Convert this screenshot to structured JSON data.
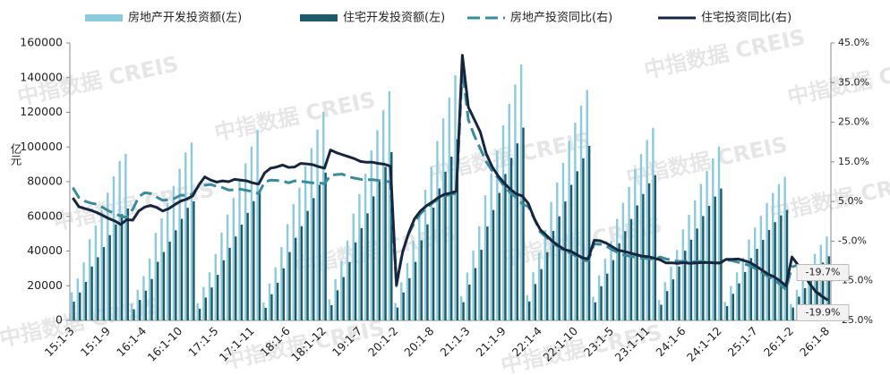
{
  "chart_data": {
    "type": "bar",
    "y_label": "亿元",
    "watermark": "中指数据 CREIS",
    "categories": [
      "15:1-3",
      null,
      null,
      null,
      null,
      null,
      "15:1-9",
      null,
      null,
      null,
      null,
      null,
      "16:1-4",
      null,
      null,
      null,
      null,
      null,
      "16:1-10",
      null,
      null,
      null,
      null,
      null,
      "17:1-5",
      null,
      null,
      null,
      null,
      null,
      "17:1-11",
      null,
      null,
      null,
      null,
      null,
      "18:1-6",
      null,
      null,
      null,
      null,
      null,
      "18:1-12",
      null,
      null,
      null,
      null,
      null,
      "19:1-7",
      null,
      null,
      null,
      null,
      null,
      "20:1-2",
      null,
      null,
      null,
      null,
      null,
      "20:1-8",
      null,
      null,
      null,
      null,
      null,
      "21:1-3",
      null,
      null,
      null,
      null,
      null,
      "21:1-9",
      null,
      null,
      null,
      null,
      null,
      "22:1-4",
      null,
      null,
      null,
      null,
      null,
      "22:1-10",
      null,
      null,
      null,
      null,
      null,
      "23:1-5",
      null,
      null,
      null,
      null,
      null,
      "23:1-11",
      null,
      null,
      null,
      null,
      null,
      "24:1-6",
      null,
      null,
      null,
      null,
      null,
      "24:1-12",
      null,
      null,
      null,
      null,
      null,
      "25:1-7",
      null,
      null,
      null,
      null,
      null,
      "26:1-2",
      null,
      null,
      null,
      null,
      null,
      "26:1-8"
    ],
    "series": [
      {
        "name": "房地产开发投资额(左)",
        "type": "bar",
        "color": "#8ccbdc",
        "values": [
          16214,
          24177,
          33448,
          46863,
          54747,
          63616,
          73693,
          83063,
          91946,
          95979,
          9454,
          17677,
          25574,
          35632,
          50464,
          58869,
          67778,
          77574,
          87441,
          96857,
          102581,
          9854,
          19292,
          27732,
          38311,
          50610,
          61111,
          70632,
          80644,
          90544,
          100387,
          109799,
          10255,
          21291,
          30592,
          42362,
          55531,
          67099,
          76519,
          88948,
          99325,
          110083,
          120264,
          12090,
          23803,
          34217,
          46075,
          61609,
          72843,
          84589,
          98008,
          109603,
          121265,
          132194,
          10115,
          21963,
          33103,
          45920,
          62780,
          75325,
          88454,
          103484,
          116556,
          128492,
          141443,
          13986,
          27576,
          40240,
          54318,
          72179,
          84895,
          98060,
          112568,
          124934,
          136085,
          147602,
          14499,
          27765,
          39154,
          52134,
          68314,
          79462,
          90809,
          103559,
          113945,
          123863,
          132895,
          13669,
          25974,
          35514,
          45701,
          58550,
          67717,
          76900,
          87269,
          95922,
          104045,
          110913,
          11842,
          22082,
          30928,
          40632,
          52529,
          60877,
          69284,
          78680,
          86309,
          93368,
          100280,
          10720,
          19904,
          27730,
          36234,
          46658,
          53580,
          60309,
          67706,
          73563,
          78591,
          82788,
          9490,
          17710,
          24100,
          30600,
          38400,
          43600,
          48430
        ]
      },
      {
        "name": "住宅开发投资额(左)",
        "type": "bar",
        "color": "#1f5a6b",
        "values": [
          10788,
          16093,
          22179,
          31074,
          36409,
          42279,
          49140,
          55379,
          61283,
          64595,
          6334,
          11844,
          17135,
          23873,
          33811,
          39442,
          45411,
          51975,
          58585,
          64894,
          68704,
          6750,
          13215,
          18996,
          26243,
          34668,
          41861,
          48383,
          55241,
          62023,
          68765,
          75148,
          7281,
          15117,
          21720,
          30077,
          39427,
          47640,
          54328,
          63153,
          70521,
          78159,
          85192,
          8826,
          17376,
          24978,
          33635,
          44975,
          53175,
          61750,
          71546,
          80010,
          88523,
          97071,
          7435,
          16143,
          24331,
          33751,
          46143,
          55364,
          65014,
          76061,
          85669,
          94442,
          104446,
          10490,
          20682,
          30180,
          40739,
          54134,
          63671,
          73545,
          84426,
          93701,
          102064,
          111173,
          10947,
          20963,
          29561,
          39361,
          51577,
          59994,
          68561,
          78187,
          86028,
          93517,
          100646,
          10388,
          19740,
          26991,
          34733,
          44498,
          51465,
          58444,
          66324,
          72901,
          79074,
          83820,
          9059,
          16893,
          23660,
          31083,
          40185,
          46571,
          53002,
          60190,
          66026,
          71427,
          76040,
          8254,
          15326,
          21352,
          27900,
          35927,
          41257,
          46438,
          52134,
          56644,
          60515,
          63747,
          7450,
          13700,
          18600,
          23500,
          29400,
          33400,
          37000
        ]
      },
      {
        "name": "房地产投资同比(右)",
        "type": "line",
        "dash": true,
        "axis": "y2",
        "color": "#3a8b9c",
        "values": [
          8.5,
          6.0,
          5.1,
          4.6,
          4.3,
          3.5,
          2.6,
          2.0,
          1.3,
          1.0,
          3.0,
          6.2,
          7.2,
          7.0,
          6.1,
          5.3,
          5.4,
          5.8,
          6.6,
          6.5,
          6.9,
          8.9,
          9.1,
          9.3,
          8.8,
          8.5,
          7.9,
          7.9,
          8.1,
          7.8,
          7.5,
          7.0,
          9.9,
          10.4,
          10.3,
          10.2,
          9.7,
          10.2,
          10.1,
          9.9,
          9.7,
          9.7,
          9.5,
          11.6,
          11.8,
          11.9,
          11.2,
          10.9,
          10.6,
          10.5,
          10.5,
          10.3,
          10.2,
          9.9,
          -16.3,
          -7.7,
          -3.3,
          -0.3,
          1.9,
          3.4,
          4.6,
          5.6,
          6.3,
          6.8,
          7.0,
          38.3,
          25.6,
          21.6,
          18.3,
          15.0,
          12.7,
          10.9,
          8.8,
          7.2,
          6.0,
          4.4,
          3.7,
          0.7,
          -2.7,
          -4.0,
          -5.4,
          -6.4,
          -7.4,
          -8.0,
          -8.8,
          -9.8,
          -10.0,
          -5.7,
          -5.8,
          -6.2,
          -7.2,
          -7.9,
          -8.5,
          -8.8,
          -9.1,
          -9.3,
          -9.4,
          -9.6,
          -9.0,
          -9.5,
          -9.8,
          -10.1,
          -10.1,
          -10.2,
          -10.2,
          -10.1,
          -10.3,
          -10.4,
          -10.6,
          -9.8,
          -9.9,
          -10.3,
          -10.7,
          -11.2,
          -12.0,
          -12.9,
          -13.9,
          -14.7,
          -15.9,
          -17.2,
          -11.5,
          -11.0,
          -13.1,
          -15.5,
          -17.7,
          -18.6,
          -19.7
        ]
      },
      {
        "name": "住宅投资同比(右)",
        "type": "line",
        "dash": false,
        "axis": "y2",
        "color": "#17253f",
        "values": [
          5.9,
          3.7,
          3.2,
          2.8,
          2.2,
          1.5,
          0.7,
          0.1,
          -0.8,
          0.4,
          0.3,
          2.6,
          3.6,
          4.0,
          3.5,
          2.6,
          3.2,
          4.2,
          5.1,
          5.6,
          6.4,
          9.1,
          11.2,
          10.4,
          9.9,
          10.2,
          10.0,
          10.6,
          10.4,
          10.2,
          9.7,
          9.4,
          12.2,
          13.4,
          13.7,
          14.2,
          13.6,
          13.7,
          14.6,
          14.5,
          14.3,
          13.8,
          13.4,
          18.0,
          17.3,
          16.8,
          16.3,
          15.8,
          15.1,
          14.9,
          14.9,
          14.6,
          14.4,
          13.9,
          -16.0,
          -8.0,
          -3.1,
          0.6,
          2.6,
          3.9,
          4.9,
          6.0,
          6.8,
          7.1,
          7.6,
          41.9,
          28.8,
          25.7,
          22.5,
          17.0,
          13.7,
          11.4,
          9.6,
          8.1,
          6.9,
          6.4,
          4.5,
          0.7,
          -2.1,
          -3.5,
          -5.0,
          -6.1,
          -7.1,
          -7.5,
          -8.3,
          -9.2,
          -9.5,
          -4.8,
          -4.9,
          -5.5,
          -6.4,
          -7.3,
          -7.6,
          -8.0,
          -8.4,
          -8.8,
          -8.9,
          -9.3,
          -9.7,
          -10.5,
          -10.5,
          -10.6,
          -10.4,
          -10.6,
          -10.5,
          -10.4,
          -10.4,
          -10.5,
          -10.5,
          -9.6,
          -9.6,
          -9.5,
          -9.9,
          -10.4,
          -11.3,
          -12.3,
          -13.3,
          -14.0,
          -15.0,
          -16.3,
          -9.0,
          -11.0,
          -13.5,
          -15.8,
          -17.8,
          -18.9,
          -19.9
        ]
      }
    ],
    "annotations": [
      {
        "series": 2,
        "text": "-19.7%"
      },
      {
        "series": 3,
        "text": "-19.9%"
      }
    ],
    "ylim": [
      0,
      160000
    ],
    "yticks": [
      0,
      20000,
      40000,
      60000,
      80000,
      100000,
      120000,
      140000,
      160000
    ],
    "y2lim": [
      -25,
      45
    ],
    "y2ticks": [
      {
        "value": -25,
        "label": "-25.0%"
      },
      {
        "value": -15,
        "label": "-15.0%"
      },
      {
        "value": -5,
        "label": "-5.0%"
      },
      {
        "value": 5,
        "label": "5.0%"
      },
      {
        "value": 15,
        "label": "15.0%"
      },
      {
        "value": 25,
        "label": "25.0%"
      },
      {
        "value": 35,
        "label": "35.0%"
      },
      {
        "value": 45,
        "label": "45.0%"
      }
    ]
  }
}
